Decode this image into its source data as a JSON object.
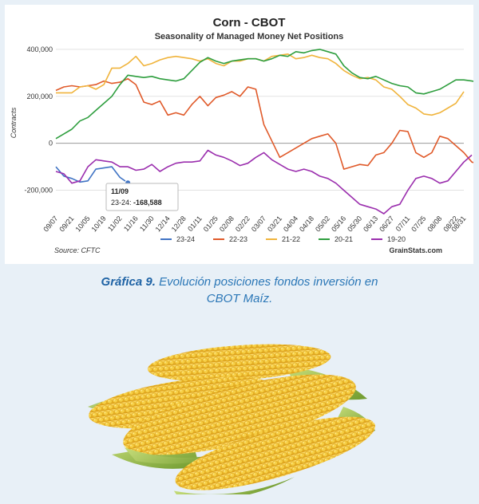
{
  "chart_data": {
    "type": "line",
    "title": "Corn - CBOT",
    "subtitle": "Seasonality of Managed Money Net Positions",
    "ylabel": "Contracts",
    "xlabel": "",
    "ylim": [
      -300000,
      420000
    ],
    "yticks": [
      -200000,
      0,
      200000,
      400000
    ],
    "ytick_labels": [
      "-200,000",
      "0",
      "200,000",
      "400,000"
    ],
    "x_tick_labels": [
      "09/07",
      "09/21",
      "10/05",
      "10/19",
      "11/02",
      "11/16",
      "11/30",
      "12/14",
      "12/28",
      "01/11",
      "01/25",
      "02/08",
      "02/22",
      "03/07",
      "03/21",
      "04/04",
      "04/18",
      "05/02",
      "05/16",
      "05/30",
      "06/13",
      "06/27",
      "07/11",
      "07/25",
      "08/08",
      "08/22",
      "08/31"
    ],
    "n_weeks": 52,
    "grid": "horizontal",
    "legend": "bottom",
    "series": [
      {
        "name": "23-24",
        "color": "#3f73c4",
        "values": [
          -100000,
          -140000,
          -150000,
          -165000,
          -160000,
          -110000,
          -105000,
          -100000,
          -145000,
          -168588
        ]
      },
      {
        "name": "22-23",
        "color": "#e05a2a",
        "values": [
          225000,
          240000,
          245000,
          240000,
          245000,
          250000,
          265000,
          255000,
          260000,
          275000,
          250000,
          175000,
          165000,
          180000,
          120000,
          130000,
          120000,
          165000,
          200000,
          160000,
          195000,
          205000,
          220000,
          200000,
          240000,
          230000,
          80000,
          10000,
          -60000,
          -40000,
          -20000,
          0,
          20000,
          30000,
          40000,
          0,
          -110000,
          -100000,
          -90000,
          -95000,
          -50000,
          -40000,
          0,
          55000,
          50000,
          -40000,
          -60000,
          -40000,
          30000,
          20000,
          -10000,
          -40000,
          -80000,
          -90000
        ]
      },
      {
        "name": "21-22",
        "color": "#f0b43c",
        "values": [
          215000,
          215000,
          215000,
          240000,
          245000,
          230000,
          250000,
          320000,
          320000,
          340000,
          370000,
          330000,
          340000,
          355000,
          365000,
          370000,
          365000,
          360000,
          350000,
          360000,
          340000,
          330000,
          350000,
          350000,
          360000,
          360000,
          350000,
          370000,
          375000,
          380000,
          360000,
          365000,
          375000,
          365000,
          360000,
          340000,
          310000,
          290000,
          275000,
          280000,
          270000,
          240000,
          230000,
          200000,
          165000,
          150000,
          125000,
          120000,
          130000,
          150000,
          170000,
          220000
        ]
      },
      {
        "name": "20-21",
        "color": "#2e9e3e",
        "values": [
          20000,
          40000,
          60000,
          95000,
          110000,
          140000,
          170000,
          200000,
          250000,
          290000,
          285000,
          280000,
          285000,
          275000,
          270000,
          265000,
          275000,
          310000,
          345000,
          365000,
          350000,
          340000,
          350000,
          355000,
          360000,
          360000,
          350000,
          360000,
          375000,
          370000,
          390000,
          385000,
          395000,
          400000,
          390000,
          380000,
          330000,
          300000,
          280000,
          275000,
          285000,
          270000,
          255000,
          245000,
          240000,
          215000,
          210000,
          220000,
          230000,
          250000,
          270000,
          270000,
          265000,
          260000
        ]
      },
      {
        "name": "19-20",
        "color": "#9b2fae",
        "values": [
          -120000,
          -130000,
          -170000,
          -160000,
          -100000,
          -70000,
          -75000,
          -80000,
          -100000,
          -100000,
          -115000,
          -110000,
          -90000,
          -120000,
          -100000,
          -85000,
          -80000,
          -80000,
          -75000,
          -30000,
          -50000,
          -60000,
          -75000,
          -95000,
          -85000,
          -60000,
          -40000,
          -70000,
          -90000,
          -110000,
          -120000,
          -110000,
          -120000,
          -140000,
          -150000,
          -170000,
          -200000,
          -230000,
          -260000,
          -270000,
          -280000,
          -300000,
          -270000,
          -260000,
          -200000,
          -150000,
          -140000,
          -150000,
          -170000,
          -160000,
          -120000,
          -80000,
          -50000
        ]
      }
    ],
    "tooltip": {
      "date": "11/09",
      "series": "23-24",
      "value": "-168,588"
    }
  },
  "footer": {
    "source": "Source: CFTC",
    "brand": "GrainStats.com"
  },
  "caption": {
    "bold": "Gráfica 9.",
    "line1": " Evolución posiciones fondos inversión en",
    "line2": "CBOT Maíz."
  },
  "photo": {
    "icon": "corn-photo"
  }
}
